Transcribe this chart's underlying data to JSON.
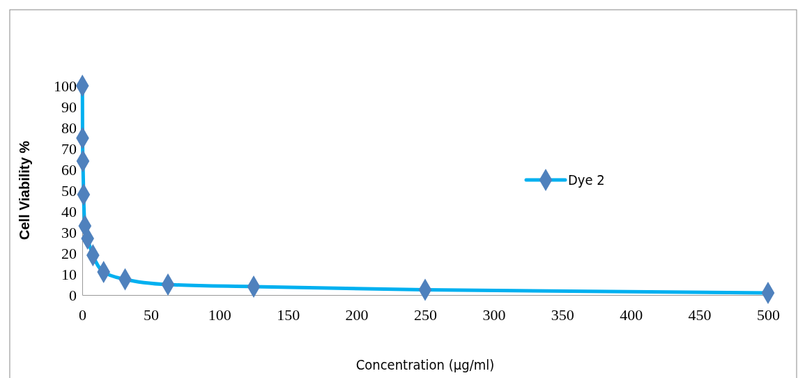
{
  "chart_data": {
    "type": "line",
    "xlabel": "Concentration (µg/ml)",
    "ylabel": "Cell  Viability  %",
    "xlim": [
      0,
      500
    ],
    "xticks": [
      0,
      50,
      100,
      150,
      200,
      250,
      300,
      350,
      400,
      450,
      500
    ],
    "ylim": [
      0,
      100
    ],
    "yticks": [
      0,
      10,
      20,
      30,
      40,
      50,
      60,
      70,
      80,
      90,
      100
    ],
    "series": [
      {
        "name": "Dye 2",
        "color": "#00b0f0",
        "x": [
          0.12,
          0.24,
          0.49,
          0.98,
          1.95,
          3.9,
          7.8,
          15.6,
          31.25,
          62.5,
          125,
          250,
          500
        ],
        "values": [
          100,
          75,
          64,
          48,
          33,
          27,
          19,
          11,
          7.5,
          5,
          4,
          2.5,
          1
        ]
      }
    ],
    "marker": "diamond",
    "grid": false,
    "legend": "right"
  }
}
